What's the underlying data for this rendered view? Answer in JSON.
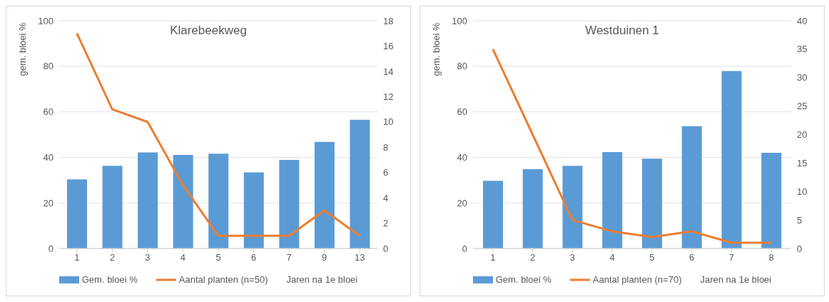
{
  "chart_data": [
    {
      "type": "bar",
      "title": "Klarebeekweg",
      "xlabel": "Jaren na 1e bloei",
      "ylabel": "gem. bloei %",
      "categories": [
        "1",
        "2",
        "3",
        "4",
        "5",
        "6",
        "7",
        "9",
        "13"
      ],
      "series": [
        {
          "name": "Gem. bloei %",
          "color": "#5b9bd5",
          "values": [
            30.3,
            36.3,
            42.2,
            41.1,
            41.6,
            33.4,
            38.9,
            46.8,
            56.5
          ]
        },
        {
          "name": "Aantal planten (n=50)",
          "type": "line",
          "axis": "y2",
          "color": "#ed7d31",
          "values": [
            17,
            11,
            10,
            5,
            1,
            1,
            1,
            3,
            1
          ]
        }
      ],
      "ylim": [
        0,
        100
      ],
      "yticks": [
        0,
        20,
        40,
        60,
        80,
        100
      ],
      "y2lim": [
        0,
        18
      ],
      "y2ticks": [
        0,
        2,
        4,
        6,
        8,
        10,
        12,
        14,
        16,
        18
      ],
      "grid": "y",
      "legend": "bottom",
      "marker": "none",
      "line_style": "solid"
    },
    {
      "type": "bar",
      "title": "Westduinen 1",
      "xlabel": "Jaren na 1e bloei",
      "ylabel": "gem. bloei %",
      "categories": [
        "1",
        "2",
        "3",
        "4",
        "5",
        "6",
        "7",
        "8"
      ],
      "series": [
        {
          "name": "Gem. bloei %",
          "color": "#5b9bd5",
          "values": [
            29.7,
            34.8,
            36.3,
            42.3,
            39.4,
            53.7,
            77.9,
            42.0
          ]
        },
        {
          "name": "Aantal planten (n=70)",
          "type": "line",
          "axis": "y2",
          "color": "#ed7d31",
          "values": [
            35,
            20,
            5,
            3,
            2,
            3,
            1,
            1
          ]
        }
      ],
      "ylim": [
        0,
        100
      ],
      "yticks": [
        0,
        20,
        40,
        60,
        80,
        100
      ],
      "y2lim": [
        0,
        40
      ],
      "y2ticks": [
        0,
        5,
        10,
        15,
        20,
        25,
        30,
        35,
        40
      ],
      "grid": "y",
      "legend": "bottom",
      "marker": "none",
      "line_style": "solid"
    }
  ]
}
